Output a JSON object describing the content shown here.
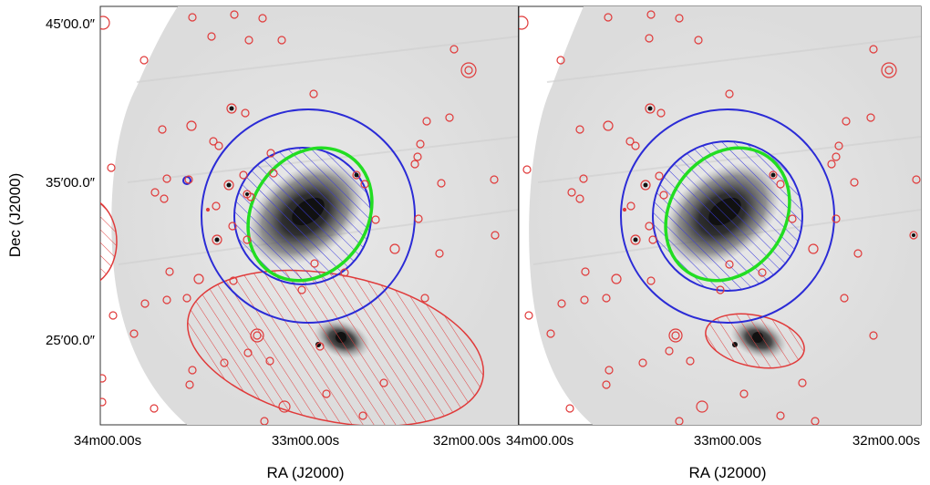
{
  "figure": {
    "y_axis_label": "Dec (J2000)",
    "x_axis_label": "RA (J2000)",
    "y_ticks": [
      "45′00.0″",
      "35′00.0″",
      "25′00.0″"
    ],
    "x_ticks": [
      "34m00.00s",
      "33m00.00s",
      "32m00.00s"
    ],
    "panels": [
      {
        "name": "left",
        "southern_region_size": "large"
      },
      {
        "name": "right",
        "southern_region_size": "small"
      }
    ],
    "colors": {
      "source_circles": "#e03a3a",
      "annulus": "#2b2bd6",
      "ellipse": "#22dd22",
      "hatch_blue": "#3b3bdc",
      "hatch_red": "#e04040"
    }
  }
}
